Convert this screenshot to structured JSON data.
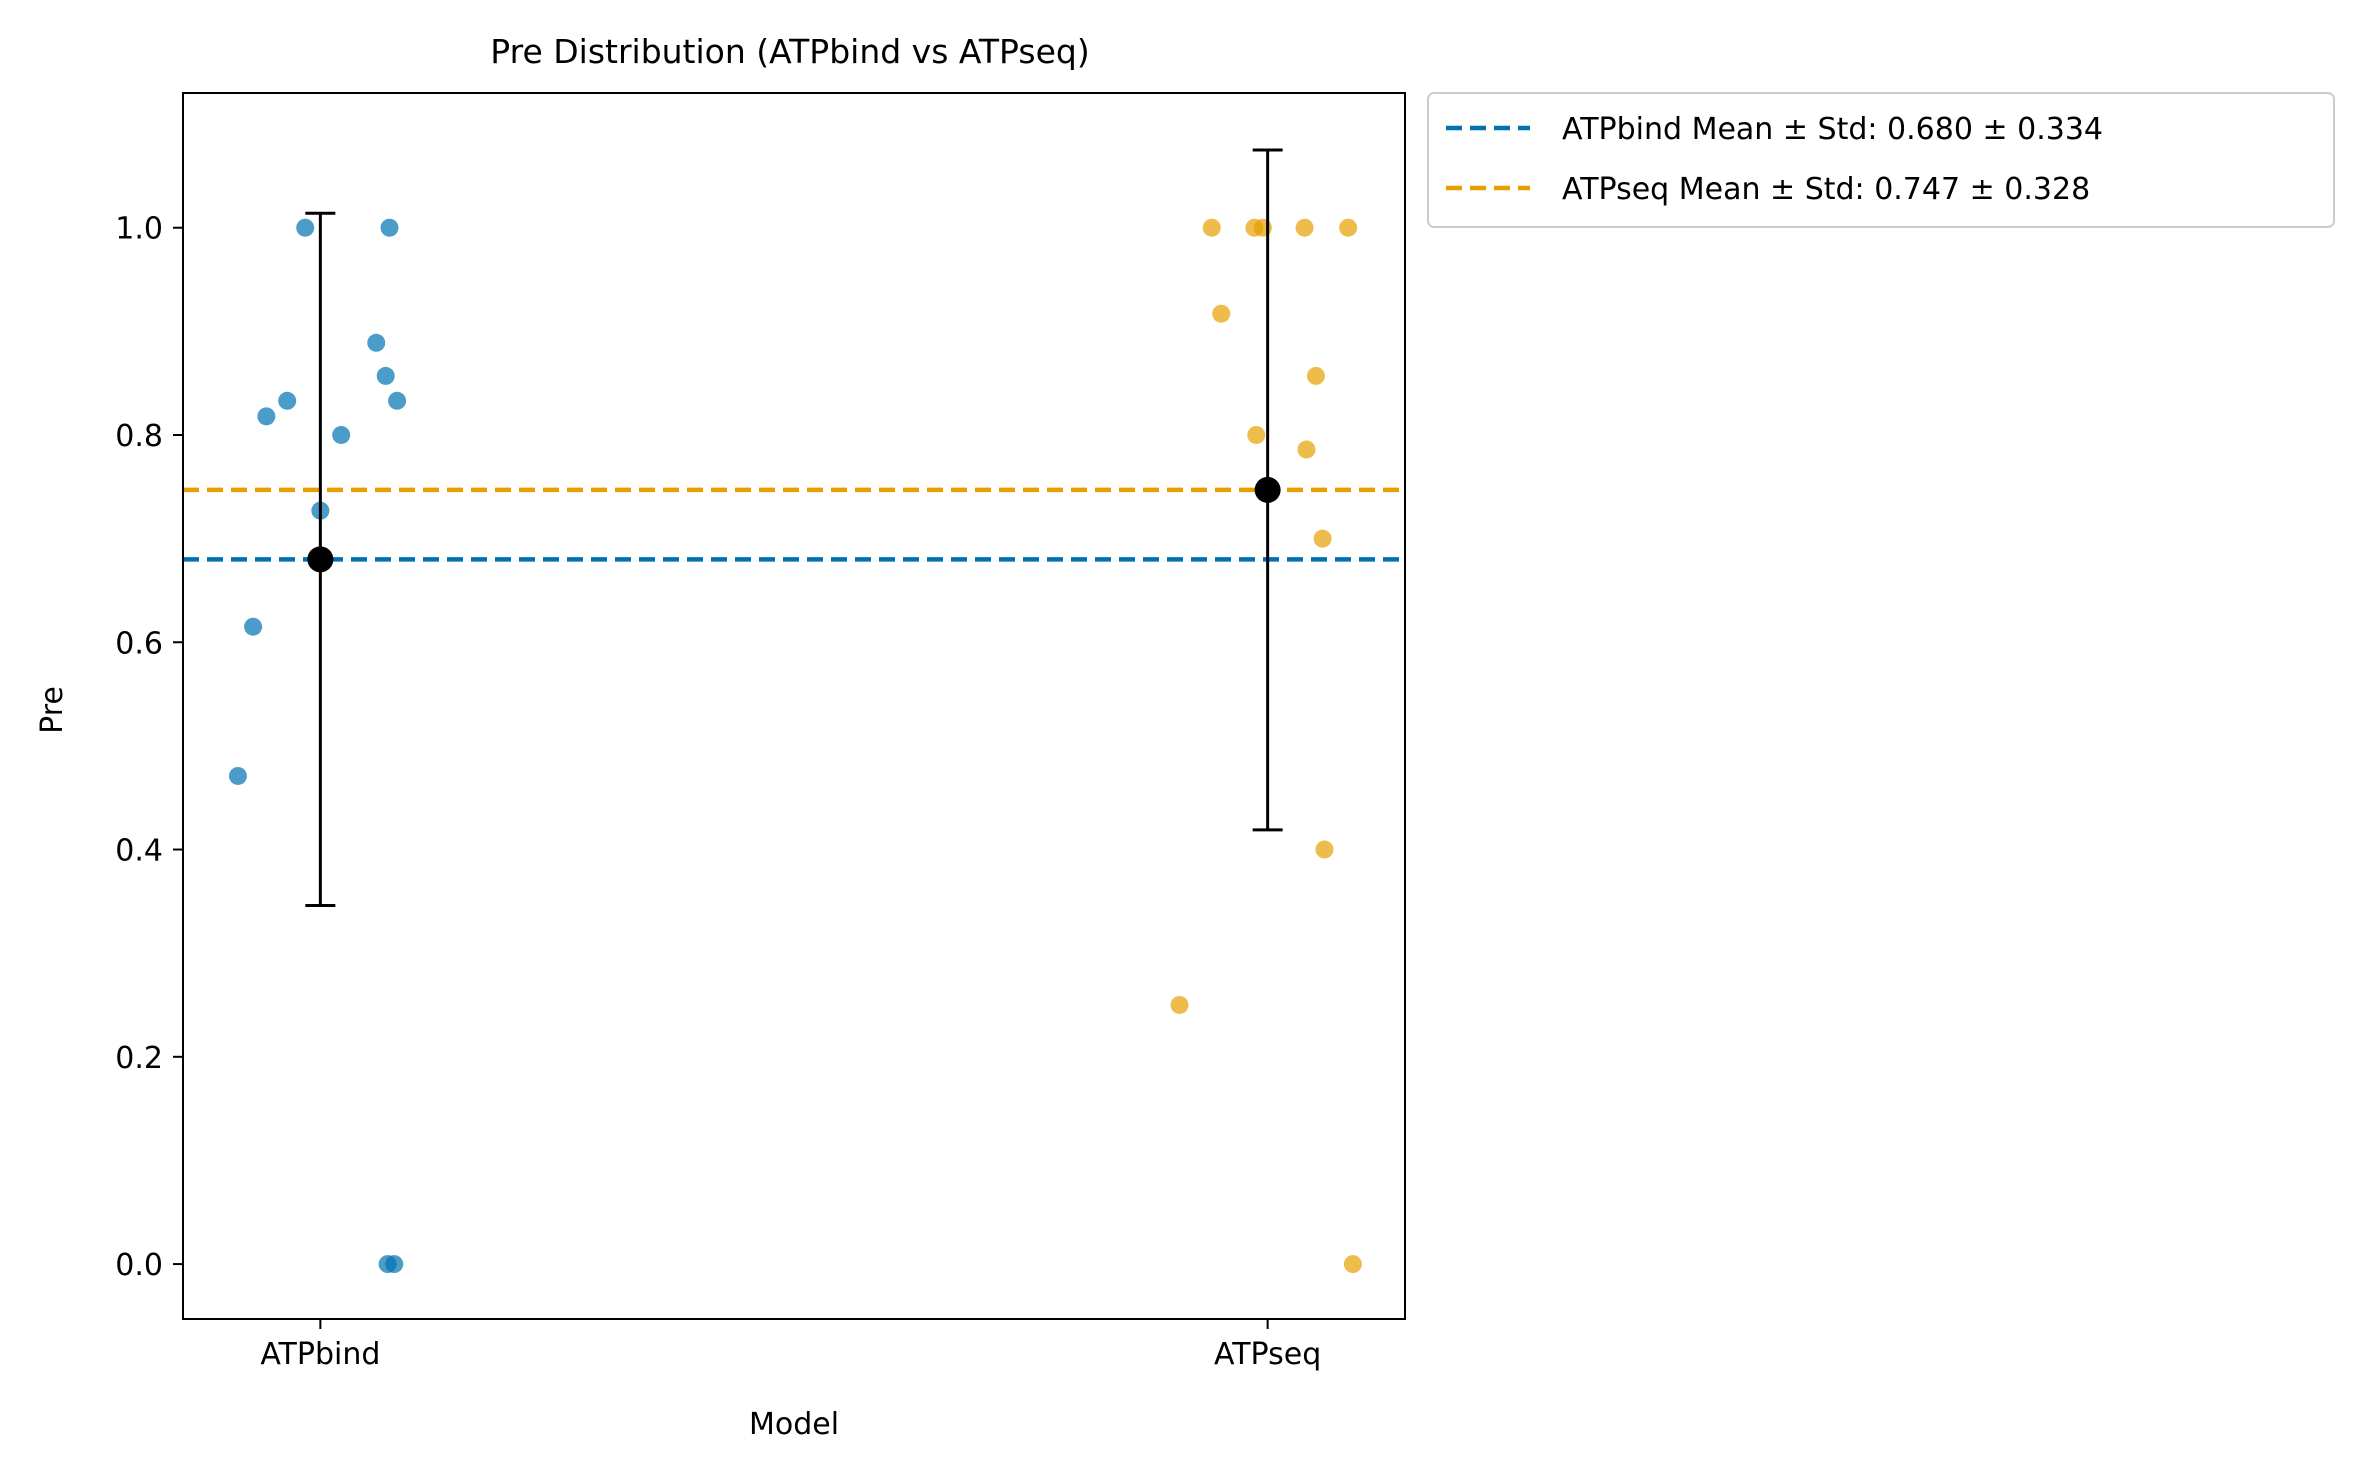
{
  "chart_data": {
    "type": "scatter",
    "title": "Pre Distribution (ATPbind vs ATPseq)",
    "xlabel": "Model",
    "ylabel": "Pre",
    "categories": [
      "ATPbind",
      "ATPseq"
    ],
    "ylim": [
      -0.053,
      1.13
    ],
    "yticks": [
      0.0,
      0.2,
      0.4,
      0.6,
      0.8,
      1.0
    ],
    "ytick_labels": [
      "0.0",
      "0.2",
      "0.4",
      "0.6",
      "0.8",
      "1.0"
    ],
    "grid": false,
    "legend_position": "outside-top-right",
    "series": [
      {
        "category": "ATPbind",
        "color": "#0072b2",
        "points": [
          {
            "x": -0.087,
            "y": 0.471
          },
          {
            "x": -0.071,
            "y": 0.615
          },
          {
            "x": -0.057,
            "y": 0.818
          },
          {
            "x": -0.035,
            "y": 0.833
          },
          {
            "x": -0.016,
            "y": 1.0
          },
          {
            "x": 0.0,
            "y": 0.727
          },
          {
            "x": 0.022,
            "y": 0.8
          },
          {
            "x": 0.059,
            "y": 0.889
          },
          {
            "x": 0.069,
            "y": 0.857
          },
          {
            "x": 0.073,
            "y": 1.0
          },
          {
            "x": 0.081,
            "y": 0.833
          },
          {
            "x": 0.071,
            "y": 0.0
          },
          {
            "x": 0.078,
            "y": 0.0
          }
        ],
        "mean": 0.68,
        "std": 0.334
      },
      {
        "category": "ATPseq",
        "color": "#e69f00",
        "points": [
          {
            "x": -0.093,
            "y": 0.25
          },
          {
            "x": -0.059,
            "y": 1.0
          },
          {
            "x": -0.049,
            "y": 0.917
          },
          {
            "x": -0.014,
            "y": 1.0
          },
          {
            "x": -0.012,
            "y": 0.8
          },
          {
            "x": -0.005,
            "y": 1.0
          },
          {
            "x": 0.039,
            "y": 1.0
          },
          {
            "x": 0.041,
            "y": 0.786
          },
          {
            "x": 0.051,
            "y": 0.857
          },
          {
            "x": 0.058,
            "y": 0.7
          },
          {
            "x": 0.06,
            "y": 0.4
          },
          {
            "x": 0.085,
            "y": 1.0
          },
          {
            "x": 0.09,
            "y": 0.0
          }
        ],
        "mean": 0.747,
        "std": 0.328
      }
    ],
    "mean_lines": [
      {
        "name": "ATPbind Mean ± Std: 0.680 ± 0.334",
        "value": 0.68,
        "color": "#0072b2"
      },
      {
        "name": "ATPseq Mean ± Std: 0.747 ± 0.328",
        "value": 0.747,
        "color": "#e69f00"
      }
    ]
  }
}
